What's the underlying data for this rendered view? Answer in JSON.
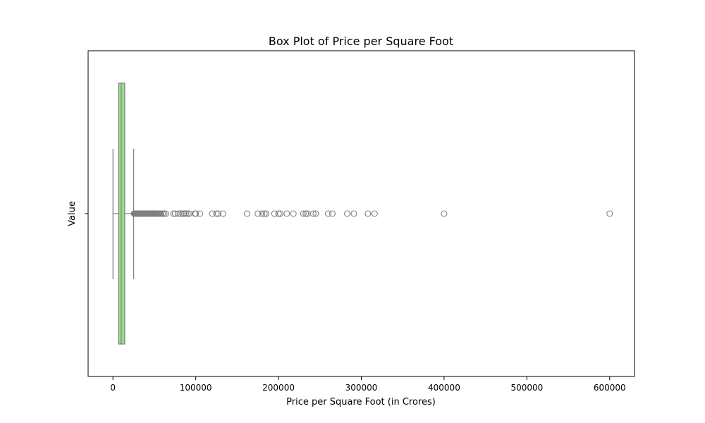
{
  "chart_data": {
    "type": "box",
    "orientation": "horizontal",
    "title": "Box Plot of Price per Square Foot",
    "xlabel": "Price per Square Foot (in Crores)",
    "ylabel": "Value",
    "xlim": [
      -30000,
      630000
    ],
    "x_ticks": [
      0,
      100000,
      200000,
      300000,
      400000,
      500000,
      600000
    ],
    "x_tick_labels": [
      "0",
      "100000",
      "200000",
      "300000",
      "400000",
      "500000",
      "600000"
    ],
    "y_tick_labels": [
      ""
    ],
    "grid": false,
    "legend": "none",
    "box": {
      "whisker_low": 0,
      "q1": 6800,
      "median": 10000,
      "q3": 14200,
      "whisker_high": 25000
    },
    "outliers": [
      25500,
      26000,
      26500,
      27000,
      27500,
      28000,
      28500,
      29000,
      29500,
      30000,
      30500,
      31000,
      31500,
      32000,
      32500,
      33000,
      33500,
      34000,
      34500,
      35000,
      35500,
      36000,
      36500,
      37000,
      37500,
      38000,
      38500,
      39000,
      39500,
      40000,
      41000,
      42000,
      43000,
      44000,
      45000,
      46000,
      47000,
      48000,
      49000,
      50000,
      51000,
      52000,
      53000,
      54000,
      55000,
      56000,
      57000,
      58000,
      60000,
      62000,
      64000,
      73000,
      75000,
      79000,
      82000,
      84000,
      86000,
      88000,
      90000,
      92000,
      99000,
      100000,
      105000,
      120000,
      125000,
      127000,
      133000,
      162000,
      175000,
      180000,
      183000,
      185000,
      195000,
      200000,
      202000,
      210000,
      218000,
      230000,
      233000,
      235000,
      242000,
      245000,
      260000,
      265000,
      283000,
      291000,
      308000,
      316000,
      400000,
      600000
    ],
    "colors": {
      "box_fill": "#98df8a",
      "line": "#7f7f7f",
      "outlier_stroke": "#7f7f7f",
      "axes": "#000000"
    }
  }
}
